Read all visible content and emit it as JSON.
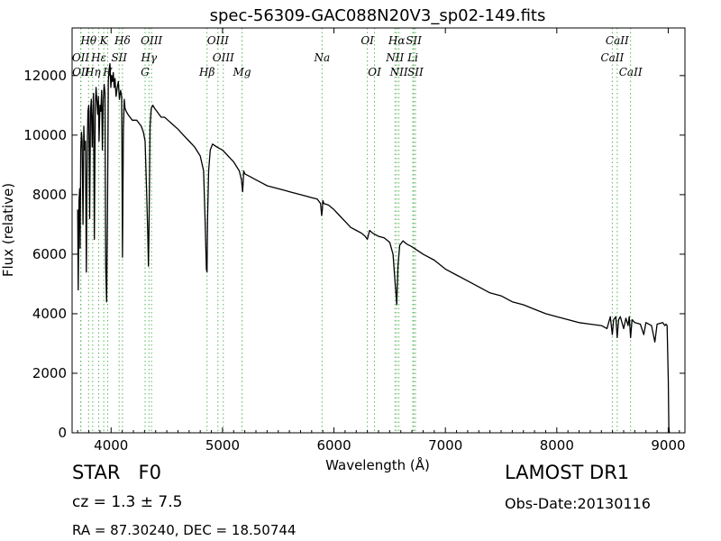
{
  "chart_data": {
    "type": "line",
    "title": "spec-56309-GAC088N20V3_sp02-149.fits",
    "xlabel": "Wavelength (Å)",
    "ylabel": "Flux (relative)",
    "xlim": [
      3650,
      9150
    ],
    "ylim": [
      0,
      13600
    ],
    "xticks": [
      4000,
      5000,
      6000,
      7000,
      8000,
      9000
    ],
    "yticks": [
      0,
      2000,
      4000,
      6000,
      8000,
      10000,
      12000
    ],
    "grid": false,
    "series": [
      {
        "x": [
          3700,
          3705,
          3712,
          3718,
          3722,
          3728,
          3734,
          3740,
          3748,
          3755,
          3762,
          3770,
          3778,
          3785,
          3792,
          3800,
          3808,
          3815,
          3822,
          3830,
          3836,
          3842,
          3850,
          3858,
          3865,
          3872,
          3880,
          3886,
          3892,
          3900,
          3908,
          3915,
          3922,
          3930,
          3938,
          3945,
          3952,
          3960,
          3968,
          3975,
          3982,
          3990,
          3998,
          4005,
          4012,
          4020,
          4028,
          4035,
          4045,
          4055,
          4065,
          4075,
          4085,
          4095,
          4102,
          4110,
          4118,
          4125,
          4135,
          4150,
          4170,
          4190,
          4210,
          4230,
          4250,
          4270,
          4290,
          4305,
          4320,
          4330,
          4335,
          4340,
          4345,
          4350,
          4360,
          4375,
          4390,
          4410,
          4430,
          4450,
          4480,
          4510,
          4540,
          4570,
          4600,
          4650,
          4700,
          4750,
          4800,
          4830,
          4845,
          4855,
          4861,
          4866,
          4875,
          4890,
          4910,
          4950,
          5000,
          5050,
          5100,
          5150,
          5170,
          5180,
          5185,
          5190,
          5200,
          5250,
          5300,
          5350,
          5400,
          5450,
          5500,
          5550,
          5600,
          5650,
          5700,
          5750,
          5800,
          5850,
          5880,
          5890,
          5896,
          5900,
          5910,
          5950,
          6000,
          6050,
          6100,
          6150,
          6200,
          6250,
          6280,
          6300,
          6320,
          6350,
          6400,
          6450,
          6500,
          6530,
          6550,
          6560,
          6563,
          6567,
          6575,
          6590,
          6620,
          6650,
          6700,
          6800,
          6900,
          7000,
          7100,
          7200,
          7300,
          7400,
          7500,
          7600,
          7700,
          7800,
          7900,
          8000,
          8100,
          8200,
          8300,
          8400,
          8450,
          8480,
          8498,
          8510,
          8530,
          8542,
          8555,
          8570,
          8600,
          8620,
          8640,
          8650,
          8662,
          8675,
          8700,
          8750,
          8780,
          8800,
          8850,
          8880,
          8900,
          8950,
          8970,
          8980,
          8990,
          9000,
          9005,
          9010
        ],
        "values": [
          7500,
          4800,
          7800,
          8200,
          6200,
          9500,
          10100,
          9800,
          7000,
          10300,
          9500,
          9800,
          5400,
          9400,
          10800,
          11000,
          7200,
          10800,
          11200,
          9600,
          10600,
          11400,
          6500,
          10900,
          11600,
          11200,
          10700,
          11300,
          9800,
          11000,
          10800,
          11500,
          9500,
          11200,
          11700,
          11400,
          5600,
          4400,
          7500,
          11800,
          12200,
          12400,
          11600,
          12000,
          11800,
          12100,
          11600,
          11900,
          11300,
          11600,
          11800,
          11200,
          11500,
          11300,
          5900,
          10200,
          11200,
          10900,
          10800,
          10700,
          10600,
          10500,
          10500,
          10500,
          10400,
          10300,
          10100,
          9800,
          8000,
          6500,
          5600,
          6800,
          8500,
          10300,
          10900,
          11000,
          10900,
          10800,
          10700,
          10600,
          10600,
          10500,
          10400,
          10300,
          10200,
          10000,
          9800,
          9600,
          9300,
          8800,
          7000,
          5500,
          5400,
          7200,
          8800,
          9500,
          9700,
          9600,
          9500,
          9300,
          9100,
          8800,
          8500,
          8100,
          8400,
          8800,
          8700,
          8600,
          8500,
          8400,
          8300,
          8250,
          8200,
          8150,
          8100,
          8050,
          8000,
          7950,
          7900,
          7850,
          7700,
          7300,
          7500,
          7800,
          7700,
          7650,
          7500,
          7300,
          7100,
          6900,
          6800,
          6700,
          6600,
          6500,
          6800,
          6700,
          6600,
          6550,
          6400,
          6000,
          5000,
          4500,
          4300,
          4700,
          5600,
          6300,
          6450,
          6350,
          6250,
          6000,
          5800,
          5500,
          5300,
          5100,
          4900,
          4700,
          4600,
          4400,
          4300,
          4150,
          4000,
          3900,
          3800,
          3700,
          3650,
          3600,
          3500,
          3900,
          3300,
          3800,
          3900,
          3200,
          3800,
          3900,
          3500,
          3850,
          3600,
          3900,
          3200,
          3800,
          3700,
          3650,
          3300,
          3700,
          3600,
          3050,
          3650,
          3700,
          3600,
          3650,
          3600,
          1800,
          200,
          0
        ]
      }
    ],
    "line_markers": [
      {
        "label": "Hθ",
        "wavelength": 3798,
        "row": 0
      },
      {
        "label": "K",
        "wavelength": 3934,
        "row": 0
      },
      {
        "label": "Hδ",
        "wavelength": 4102,
        "row": 0
      },
      {
        "label": "OIII",
        "wavelength": 4363,
        "row": 0
      },
      {
        "label": "OIII",
        "wavelength": 4959,
        "row": 0
      },
      {
        "label": "OI",
        "wavelength": 6300,
        "row": 0
      },
      {
        "label": "Hα",
        "wavelength": 6563,
        "row": 0
      },
      {
        "label": "SII",
        "wavelength": 6716,
        "row": 0
      },
      {
        "label": "CaII",
        "wavelength": 8542,
        "row": 0
      },
      {
        "label": "OII",
        "wavelength": 3727,
        "row": 1
      },
      {
        "label": "Hε",
        "wavelength": 3889,
        "row": 1
      },
      {
        "label": "SII",
        "wavelength": 4072,
        "row": 1
      },
      {
        "label": "Hγ",
        "wavelength": 4340,
        "row": 1
      },
      {
        "label": "OIII",
        "wavelength": 5007,
        "row": 1
      },
      {
        "label": "Na",
        "wavelength": 5893,
        "row": 1
      },
      {
        "label": "NII",
        "wavelength": 6548,
        "row": 1
      },
      {
        "label": "Li",
        "wavelength": 6708,
        "row": 1
      },
      {
        "label": "CaII",
        "wavelength": 8498,
        "row": 1
      },
      {
        "label": "OII",
        "wavelength": 3729,
        "row": 2
      },
      {
        "label": "Hη",
        "wavelength": 3835,
        "row": 2
      },
      {
        "label": "H",
        "wavelength": 3969,
        "row": 2
      },
      {
        "label": "G",
        "wavelength": 4305,
        "row": 2
      },
      {
        "label": "Hβ",
        "wavelength": 4861,
        "row": 2
      },
      {
        "label": "Mg",
        "wavelength": 5175,
        "row": 2
      },
      {
        "label": "OI",
        "wavelength": 6364,
        "row": 2
      },
      {
        "label": "NII",
        "wavelength": 6583,
        "row": 2
      },
      {
        "label": "SII",
        "wavelength": 6731,
        "row": 2
      },
      {
        "label": "CaII",
        "wavelength": 8662,
        "row": 2
      }
    ],
    "marker_color": "#5ab45a",
    "line_color": "#000000"
  },
  "info": {
    "object_class": "STAR   F0",
    "cz": "cz = 1.3 ± 7.5",
    "radec": "RA = 87.30240, DEC = 18.50744",
    "survey": "LAMOST DR1",
    "obs_date": "Obs-Date:20130116"
  }
}
